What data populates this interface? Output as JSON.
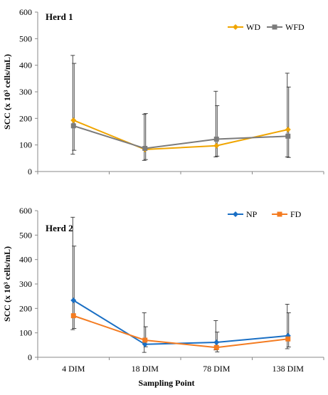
{
  "chart_data": [
    {
      "type": "line",
      "title": "Herd 1",
      "ylabel": "SCC (x 10³ cells/mL)",
      "ylim": [
        0,
        600
      ],
      "yticks": [
        0,
        100,
        200,
        300,
        400,
        500,
        600
      ],
      "categories": [
        "4 DIM",
        "18 DIM",
        "78 DIM",
        "138 DIM"
      ],
      "legend": "top-right",
      "series": [
        {
          "name": "WD",
          "color": "#f0a500",
          "marker": "diamond",
          "values": [
            193,
            83,
            97,
            158
          ],
          "err_upper": [
            437,
            215,
            302,
            370
          ],
          "err_lower": [
            65,
            42,
            55,
            55
          ]
        },
        {
          "name": "WFD",
          "color": "#7b7b7b",
          "marker": "square",
          "values": [
            172,
            87,
            122,
            133
          ],
          "err_upper": [
            407,
            218,
            248,
            318
          ],
          "err_lower": [
            80,
            45,
            58,
            53
          ]
        }
      ]
    },
    {
      "type": "line",
      "title": "Herd 2",
      "ylabel": "SCC (x 10³ cells/mL)",
      "xlabel": "Sampling Point",
      "ylim": [
        0,
        600
      ],
      "yticks": [
        0,
        100,
        200,
        300,
        400,
        500,
        600
      ],
      "categories": [
        "4 DIM",
        "18 DIM",
        "78 DIM",
        "138 DIM"
      ],
      "legend": "top-right",
      "series": [
        {
          "name": "NP",
          "color": "#1a6fc4",
          "marker": "diamond",
          "values": [
            233,
            53,
            61,
            88
          ],
          "err_upper": [
            573,
            182,
            150,
            217
          ],
          "err_lower": [
            113,
            20,
            30,
            35
          ]
        },
        {
          "name": "FD",
          "color": "#f47b20",
          "marker": "square",
          "values": [
            170,
            70,
            40,
            75
          ],
          "err_upper": [
            455,
            125,
            103,
            182
          ],
          "err_lower": [
            118,
            43,
            22,
            42
          ]
        }
      ]
    }
  ]
}
